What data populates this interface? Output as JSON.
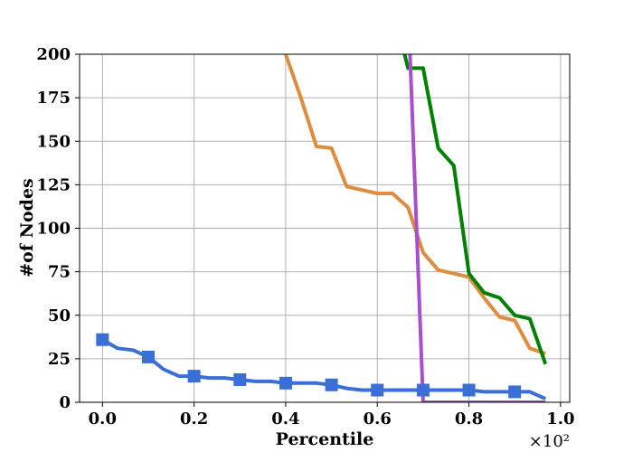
{
  "chart_data": {
    "type": "line",
    "xlabel": "Percentile",
    "ylabel": "#of Nodes",
    "x_scale_label": "×10²",
    "xlim": [
      -0.05,
      1.02
    ],
    "ylim": [
      0,
      200
    ],
    "x_ticks": [
      0.0,
      0.2,
      0.4,
      0.6,
      0.8,
      1.0
    ],
    "x_tick_labels": [
      "0.0",
      "0.2",
      "0.4",
      "0.6",
      "0.8",
      "1.0"
    ],
    "y_ticks": [
      0,
      25,
      50,
      75,
      100,
      125,
      150,
      175,
      200
    ],
    "y_tick_labels": [
      "0",
      "25",
      "50",
      "75",
      "100",
      "125",
      "150",
      "175",
      "200"
    ],
    "grid": true,
    "series": [
      {
        "color": "#3a6fd8",
        "marker": "square",
        "x": [
          0.0,
          0.033,
          0.067,
          0.1,
          0.133,
          0.167,
          0.2,
          0.233,
          0.267,
          0.3,
          0.333,
          0.367,
          0.4,
          0.433,
          0.467,
          0.5,
          0.533,
          0.567,
          0.6,
          0.633,
          0.667,
          0.7,
          0.733,
          0.767,
          0.8,
          0.833,
          0.867,
          0.9,
          0.933,
          0.967
        ],
        "values": [
          36,
          31,
          30,
          26,
          19,
          15,
          15,
          14,
          14,
          13,
          12,
          12,
          11,
          11,
          11,
          10,
          8,
          7,
          7,
          7,
          7,
          7,
          7,
          7,
          7,
          6,
          6,
          6,
          6,
          2
        ],
        "marker_x": [
          0.0,
          0.1,
          0.2,
          0.3,
          0.4,
          0.5,
          0.6,
          0.7,
          0.8,
          0.9
        ],
        "marker_values": [
          36,
          26,
          15,
          13,
          11,
          10,
          7,
          7,
          7,
          6
        ]
      },
      {
        "color": "#e08c3e",
        "marker": "none",
        "x": [
          0.4,
          0.433,
          0.467,
          0.5,
          0.533,
          0.567,
          0.6,
          0.633,
          0.667,
          0.7,
          0.733,
          0.767,
          0.8,
          0.833,
          0.867,
          0.9,
          0.933,
          0.967
        ],
        "values": [
          200,
          175,
          147,
          146,
          124,
          122,
          120,
          120,
          112,
          86,
          76,
          74,
          72,
          60,
          49,
          47,
          31,
          28
        ]
      },
      {
        "color": "#008000",
        "marker": "none",
        "x": [
          0.65,
          0.667,
          0.7,
          0.733,
          0.767,
          0.8,
          0.833,
          0.867,
          0.9,
          0.933,
          0.967
        ],
        "values": [
          210,
          192,
          192,
          146,
          136,
          74,
          63,
          60,
          50,
          48,
          22
        ]
      },
      {
        "color": "#aa4fcc",
        "marker": "none",
        "x": [
          0.67,
          0.7,
          0.733,
          0.767,
          0.8,
          0.833,
          0.867,
          0.9,
          0.933,
          0.967
        ],
        "values": [
          210,
          0,
          0,
          0,
          0,
          0,
          0,
          0,
          0,
          0
        ]
      }
    ]
  }
}
